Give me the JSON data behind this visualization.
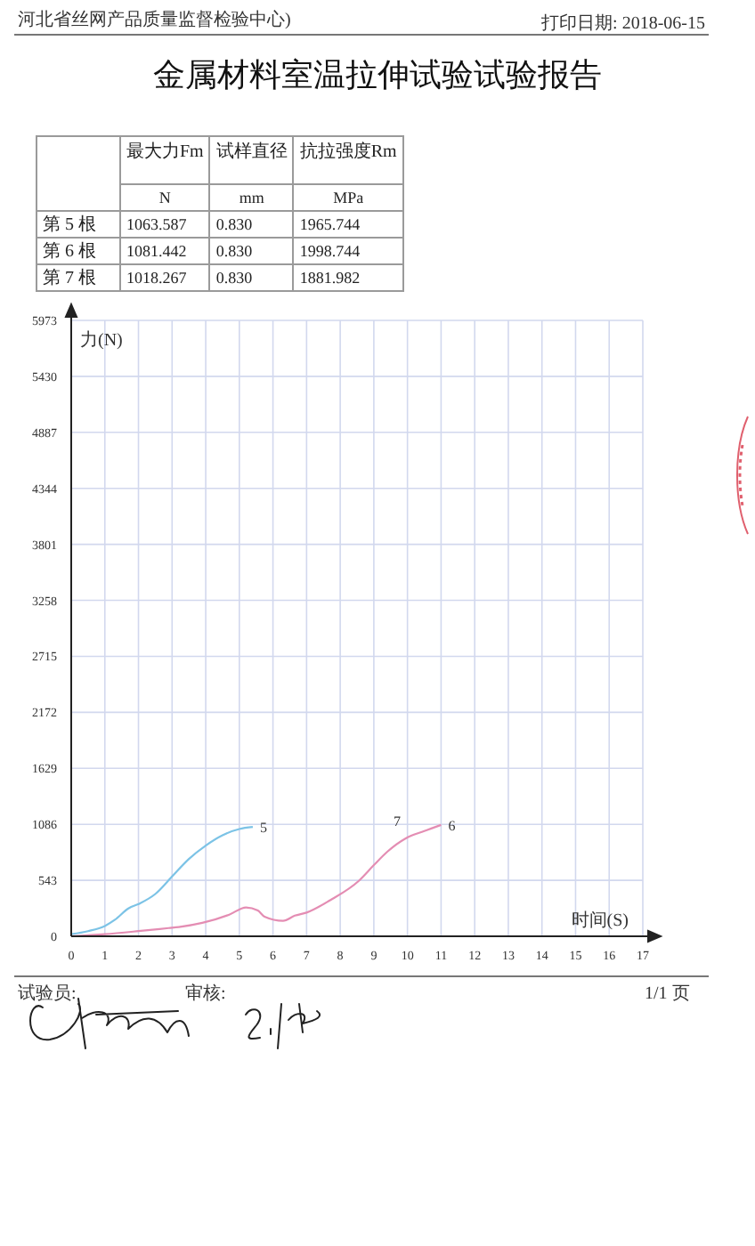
{
  "chart_data": {
    "type": "line",
    "title": "金属材料室温拉伸试验试验报告",
    "xlabel": "时间(S)",
    "ylabel": "力(N)",
    "xlim": [
      0,
      17
    ],
    "xticks": [
      0,
      1,
      2,
      3,
      4,
      5,
      6,
      7,
      8,
      9,
      10,
      11,
      12,
      13,
      14,
      15,
      16,
      17
    ],
    "ylim": [
      0,
      5973
    ],
    "yticks": [
      0,
      543,
      1086,
      1629,
      2172,
      2715,
      3258,
      3801,
      4344,
      4887,
      5430,
      5973
    ],
    "grid": true,
    "series": [
      {
        "name": "5",
        "color": "#7cc3e6",
        "x": [
          0,
          0.5,
          1,
          1.3,
          1.7,
          2.05,
          2.5,
          3.0,
          3.5,
          4.0,
          4.5,
          5.0,
          5.4
        ],
        "values": [
          20,
          50,
          100,
          160,
          270,
          320,
          410,
          580,
          750,
          880,
          980,
          1040,
          1060
        ]
      },
      {
        "name": "6",
        "color": "#e48db3",
        "x": [
          0,
          1,
          2,
          2.9,
          3.2,
          3.9,
          4.7,
          5.2,
          5.55,
          5.75,
          6.3,
          6.65,
          7.0,
          7.7,
          8.56,
          9.0,
          9.4,
          9.95,
          10.5,
          11.0
        ],
        "values": [
          0,
          20,
          50,
          80,
          90,
          130,
          210,
          280,
          250,
          190,
          150,
          200,
          230,
          350,
          540,
          690,
          820,
          950,
          1020,
          1080
        ]
      }
    ],
    "annotations": [
      "河北省丝网产品质量监督检验中心)",
      "打印日期: 2018-06-15",
      "最大力Fm",
      "试样直径",
      "抗拉强度Rm",
      "N",
      "mm",
      "MPa",
      "第 5 根",
      "1063.587",
      "0.830",
      "1965.744",
      "第 6 根",
      "1081.442",
      "0.830",
      "1998.744",
      "第 7 根",
      "1018.267",
      "0.830",
      "1881.982",
      "试验员:",
      "审核:",
      "1/1 页",
      "7"
    ]
  }
}
